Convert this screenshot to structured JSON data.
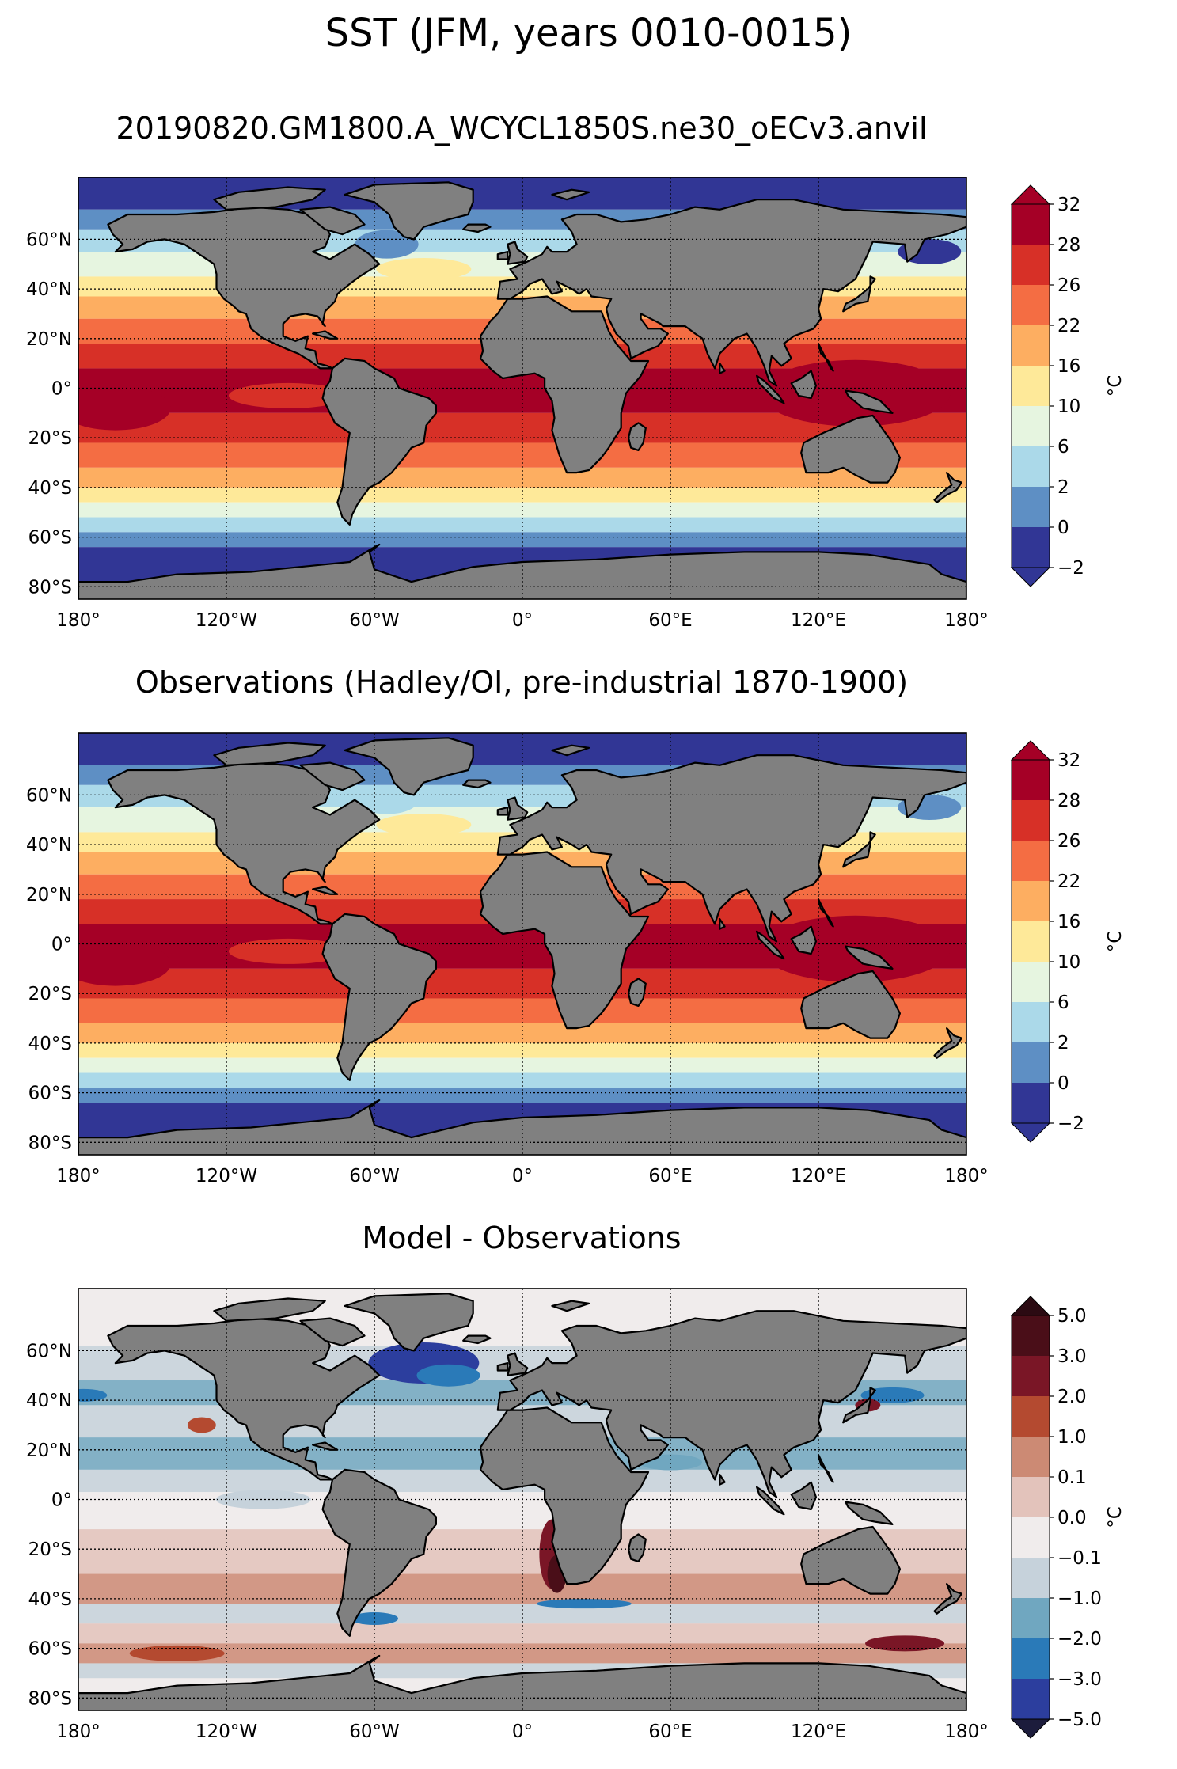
{
  "figure": {
    "title": "SST (JFM, years 0010-0015)"
  },
  "panels": [
    {
      "title": "20190820.GM1800.A_WCYCL1850S.ne30_oECv3.anvil",
      "colorbar": {
        "unit": "°C",
        "ticks": [
          "−2",
          "0",
          "2",
          "6",
          "10",
          "16",
          "22",
          "26",
          "28",
          "32"
        ],
        "colors": [
          "#313695",
          "#5e8fc4",
          "#abd9e9",
          "#e6f5e0",
          "#fee999",
          "#fdae61",
          "#f46d43",
          "#d73027",
          "#a50026"
        ],
        "extend_low_color": "#313695",
        "extend_high_color": "#a50026"
      }
    },
    {
      "title": "Observations (Hadley/OI, pre-industrial 1870-1900)",
      "colorbar": {
        "unit": "°C",
        "ticks": [
          "−2",
          "0",
          "2",
          "6",
          "10",
          "16",
          "22",
          "26",
          "28",
          "32"
        ],
        "colors": [
          "#313695",
          "#5e8fc4",
          "#abd9e9",
          "#e6f5e0",
          "#fee999",
          "#fdae61",
          "#f46d43",
          "#d73027",
          "#a50026"
        ],
        "extend_low_color": "#313695",
        "extend_high_color": "#a50026"
      }
    },
    {
      "title": "Model - Observations",
      "colorbar": {
        "unit": "°C",
        "ticks": [
          "−5.0",
          "−3.0",
          "−2.0",
          "−1.0",
          "−0.1",
          "0.0",
          "0.1",
          "1.0",
          "2.0",
          "3.0",
          "5.0"
        ],
        "colors": [
          "#2c3e9e",
          "#2a7ab8",
          "#70a7c0",
          "#c6d2db",
          "#f0ecec",
          "#e3c3bb",
          "#cc8a74",
          "#b44a30",
          "#7a1626",
          "#4a0e18"
        ],
        "extend_low_color": "#1c1c3c",
        "extend_high_color": "#2b0a12"
      }
    }
  ],
  "axes": {
    "lon_labels": [
      "180°",
      "120°W",
      "60°W",
      "0°",
      "60°E",
      "120°E",
      "180°"
    ],
    "lon_values": [
      -180,
      -120,
      -60,
      0,
      60,
      120,
      180
    ],
    "lat_labels": [
      "60°N",
      "40°N",
      "20°N",
      "0°",
      "20°S",
      "40°S",
      "60°S",
      "80°S"
    ],
    "lat_values": [
      60,
      40,
      20,
      0,
      -20,
      -40,
      -60,
      -80
    ],
    "lat_range": [
      -85,
      85
    ],
    "lon_range": [
      -180,
      180
    ],
    "grid": true
  },
  "map_style": {
    "land_color": "#808080",
    "coast_color": "#000000"
  },
  "chart_data": [
    {
      "type": "heatmap",
      "title": "20190820.GM1800.A_WCYCL1850S.ne30_oECv3.anvil",
      "variable": "SST",
      "unit": "°C",
      "levels": [
        -2,
        0,
        2,
        6,
        10,
        16,
        22,
        26,
        28,
        32
      ],
      "lat_range": [
        -85,
        85
      ],
      "lon_range": [
        -180,
        180
      ]
    },
    {
      "type": "heatmap",
      "title": "Observations (Hadley/OI, pre-industrial 1870-1900)",
      "variable": "SST",
      "unit": "°C",
      "levels": [
        -2,
        0,
        2,
        6,
        10,
        16,
        22,
        26,
        28,
        32
      ],
      "lat_range": [
        -85,
        85
      ],
      "lon_range": [
        -180,
        180
      ]
    },
    {
      "type": "heatmap",
      "title": "Model - Observations",
      "variable": "SST difference",
      "unit": "°C",
      "levels": [
        -5.0,
        -3.0,
        -2.0,
        -1.0,
        -0.1,
        0.0,
        0.1,
        1.0,
        2.0,
        3.0,
        5.0
      ],
      "lat_range": [
        -85,
        85
      ],
      "lon_range": [
        -180,
        180
      ]
    }
  ]
}
